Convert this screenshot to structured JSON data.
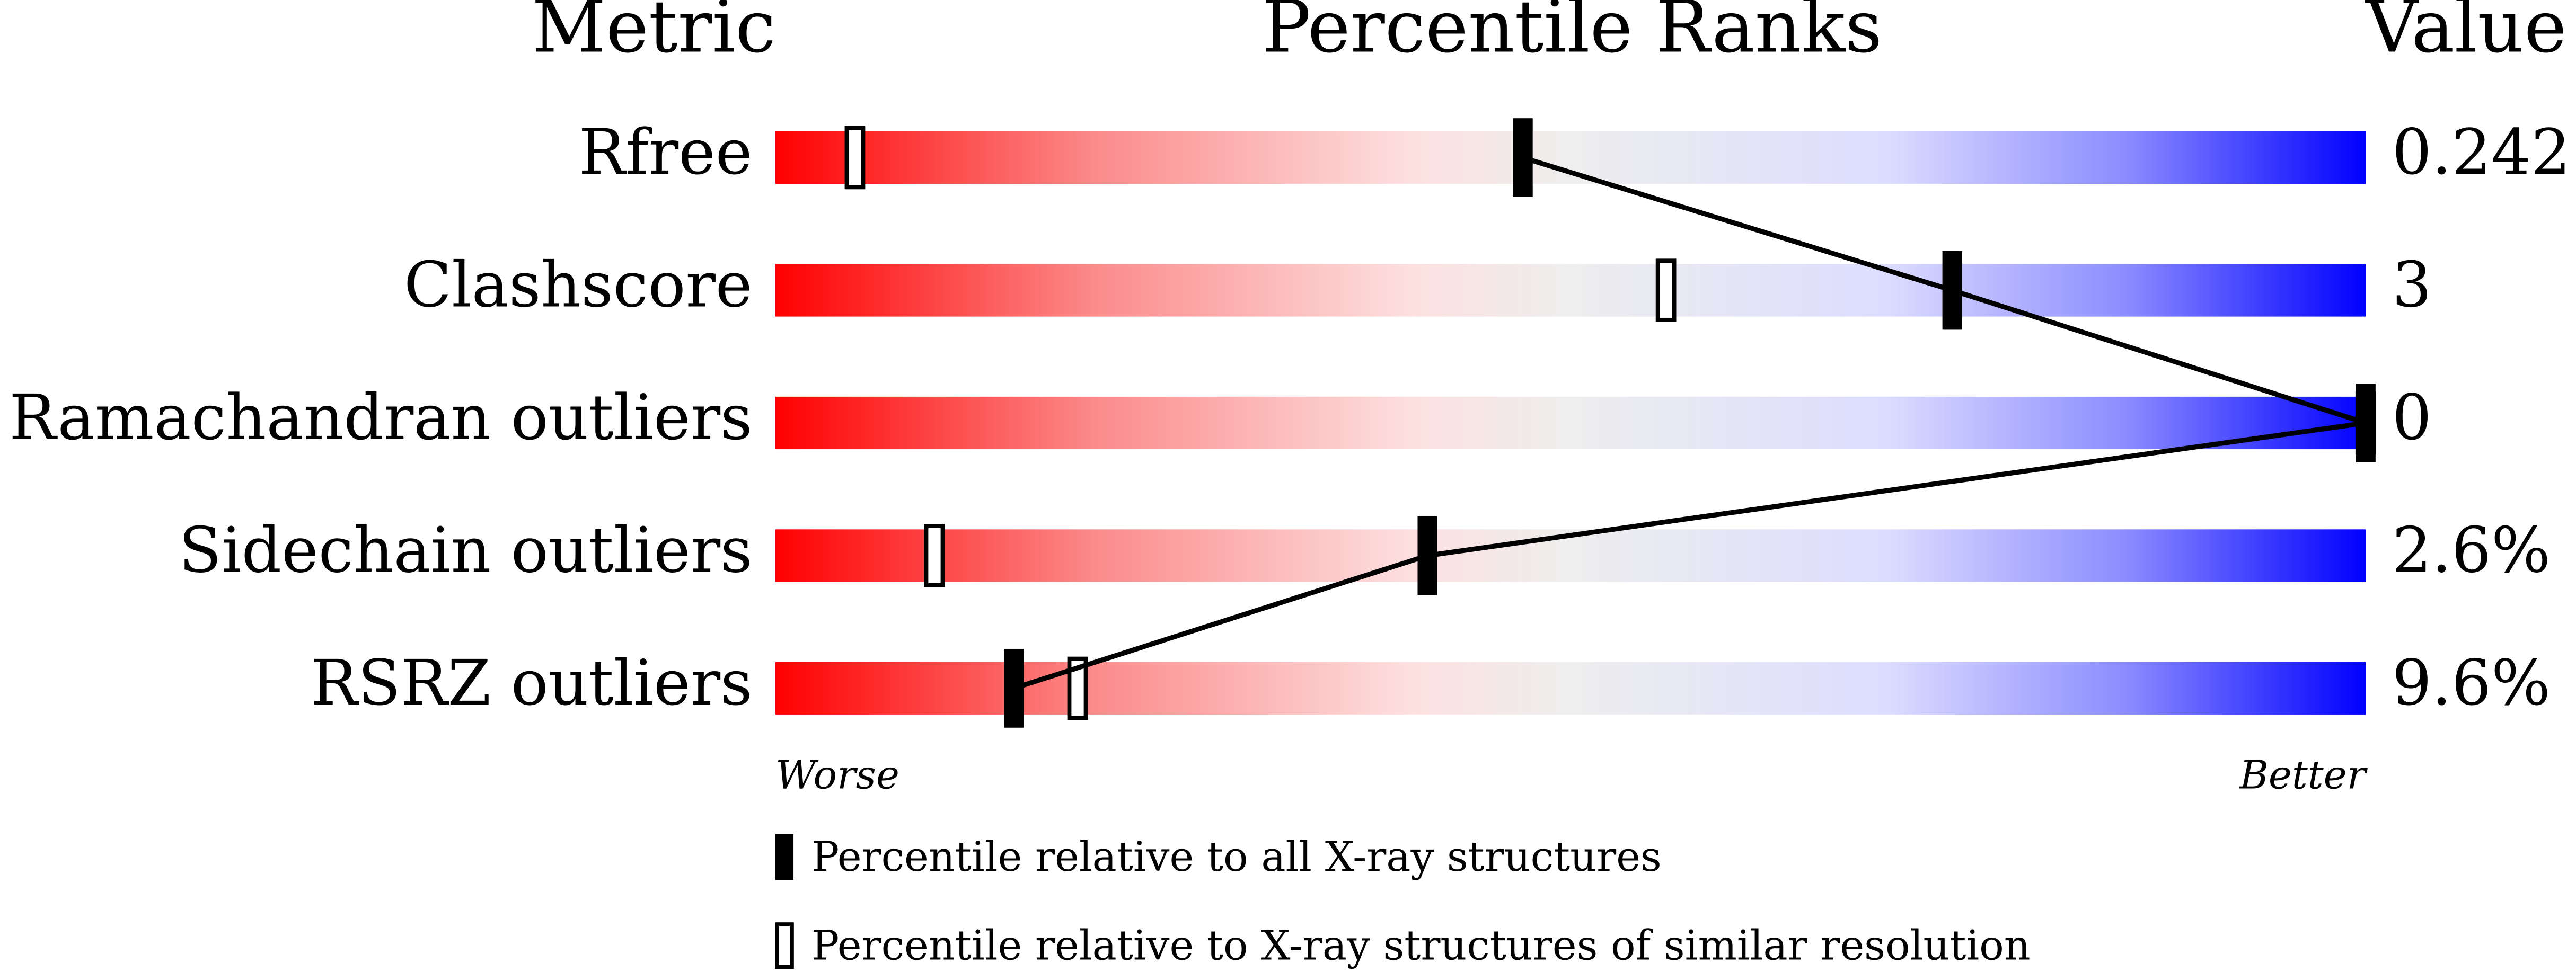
{
  "chart_data": {
    "type": "percentile",
    "headers": [
      "Metric",
      "Percentile Ranks",
      "Value"
    ],
    "categories": [
      "Rfree",
      "Clashscore",
      "Ramachandran outliers",
      "Sidechain outliers",
      "RSRZ outliers"
    ],
    "metric_values": [
      "0.242",
      "3",
      "0",
      "2.6%",
      "9.6%"
    ],
    "series": [
      {
        "name": "Percentile relative to all X-ray structures",
        "style": "filled",
        "values": [
          47,
          74,
          100,
          41,
          15
        ]
      },
      {
        "name": "Percentile relative to X-ray structures of similar resolution",
        "style": "hollow",
        "values": [
          5,
          56,
          100,
          10,
          19
        ]
      }
    ],
    "xlim": [
      0,
      100
    ],
    "xlabel_left": "Worse",
    "xlabel_right": "Better"
  }
}
